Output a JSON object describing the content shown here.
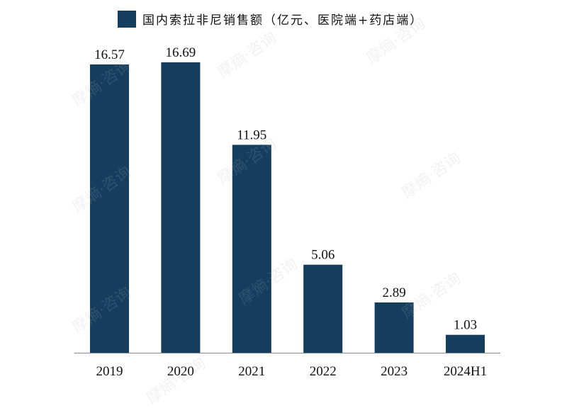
{
  "chart_data": {
    "type": "bar",
    "title": "",
    "categories": [
      "2019",
      "2020",
      "2021",
      "2022",
      "2023",
      "2024H1"
    ],
    "series": [
      {
        "name": "国内索拉非尼销售额（亿元、医院端+药店端）",
        "values": [
          16.57,
          16.69,
          11.95,
          5.06,
          2.89,
          1.03
        ]
      }
    ],
    "data_labels": [
      "16.57",
      "16.69",
      "11.95",
      "5.06",
      "2.89",
      "1.03"
    ],
    "xlabel": "",
    "ylabel": "",
    "ylim": [
      0,
      16.69
    ],
    "grid": false,
    "legend_position": "top",
    "colors": {
      "bar": "#143d5e",
      "axis": "#888888"
    }
  },
  "watermark": "摩熵·咨询"
}
